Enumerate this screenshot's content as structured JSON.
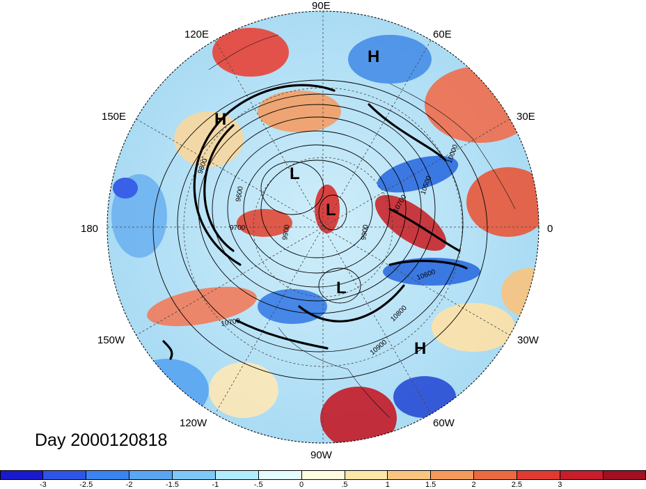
{
  "title": "Day 2000120818",
  "longitude_labels": [
    "90E",
    "60E",
    "30E",
    "0",
    "30W",
    "60W",
    "90W",
    "120W",
    "150W",
    "180",
    "150E",
    "120E"
  ],
  "pressure_centers": [
    {
      "label": "H"
    },
    {
      "label": "H"
    },
    {
      "label": "L"
    },
    {
      "label": "L"
    },
    {
      "label": "L"
    },
    {
      "label": "H"
    }
  ],
  "contour_labels": [
    "9600",
    "9700",
    "9800",
    "9900",
    "9900",
    "10000",
    "10500",
    "10600",
    "10700",
    "10700",
    "10800",
    "10900"
  ],
  "colorbar": {
    "colors": [
      "#1a1acd",
      "#2f55e6",
      "#3b83f0",
      "#5aa6f2",
      "#7ec8f7",
      "#b2ecfc",
      "#e6fbff",
      "#fffbe0",
      "#fde7a8",
      "#f9c580",
      "#f39b5c",
      "#ec6a42",
      "#e03b33",
      "#c81e2b",
      "#a01020"
    ],
    "tick_labels": [
      "-3",
      "-2.5",
      "-2",
      "-1.5",
      "-1",
      "-.5",
      "0",
      ".5",
      "1",
      "1.5",
      "2",
      "2.5",
      "3"
    ]
  }
}
